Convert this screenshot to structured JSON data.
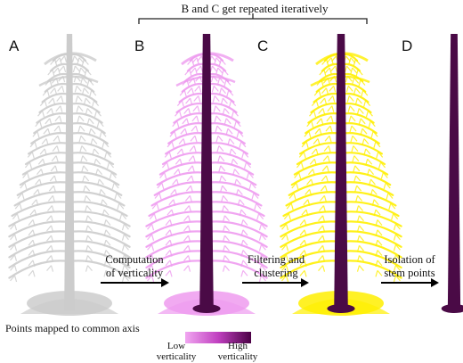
{
  "header": {
    "banner": "B and C get repeated iteratively"
  },
  "panels": [
    {
      "letter": "A"
    },
    {
      "letter": "B"
    },
    {
      "letter": "C"
    },
    {
      "letter": "D"
    }
  ],
  "steps": [
    {
      "line1": "Computation",
      "line2": "of verticality"
    },
    {
      "line1": "Filtering and",
      "line2": "clustering"
    },
    {
      "line1": "Isolation of",
      "line2": "stem points"
    }
  ],
  "caption": "Points mapped to common axis",
  "colorbar": {
    "low_line1": "Low",
    "low_line2": "verticality",
    "high_line1": "High",
    "high_line2": "verticality",
    "color_low": "#f1a6f1",
    "color_high": "#4b0045"
  },
  "colors": {
    "panel_a": "#cccccc",
    "panel_b_branches": "#ee9bef",
    "panel_b_stem": "#4a0a46",
    "panel_c_branches": "#ffef00",
    "panel_c_stem": "#4a0a46",
    "panel_d_stem": "#4a0a46"
  }
}
